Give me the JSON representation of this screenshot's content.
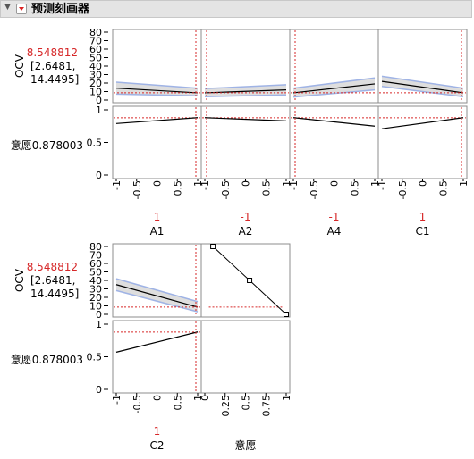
{
  "header": {
    "title": "预测刻画器"
  },
  "colors": {
    "red": "#d62728",
    "band": "#9fb3e5",
    "bandFill": "#dedede",
    "frame": "#8c8c8c"
  },
  "response": {
    "name": "OCV",
    "value": "8.548812",
    "ci_line1": "[2.6481,",
    "ci_line2": "14.4495]",
    "desirability_label": "意愿0.878003",
    "ocv_ticks": [
      "0",
      "10",
      "20",
      "30",
      "40",
      "50",
      "60",
      "70",
      "80"
    ],
    "des_ticks": [
      "0",
      "0.5",
      "1"
    ]
  },
  "x_ticks": [
    "-1",
    "-0.5",
    "0",
    "0.5",
    "1"
  ],
  "des_x_ticks": [
    "0",
    "0.25",
    "0.5",
    "0.75",
    "1"
  ],
  "factors": [
    {
      "name": "A1",
      "setting": "1",
      "ocv": [
        14,
        8.5
      ],
      "ci": [
        [
          7,
          21
        ],
        [
          5,
          14
        ]
      ],
      "des": [
        0.79,
        0.88
      ]
    },
    {
      "name": "A2",
      "setting": "-1",
      "ocv": [
        8.5,
        12
      ],
      "ci": [
        [
          4,
          13.5
        ],
        [
          6,
          18
        ]
      ],
      "des": [
        0.88,
        0.83
      ]
    },
    {
      "name": "A4",
      "setting": "-1",
      "ocv": [
        8.5,
        19
      ],
      "ci": [
        [
          3.5,
          14
        ],
        [
          12,
          26
        ]
      ],
      "des": [
        0.88,
        0.75
      ]
    },
    {
      "name": "C1",
      "setting": "1",
      "ocv": [
        22,
        8.5
      ],
      "ci": [
        [
          16,
          28
        ],
        [
          4,
          14
        ]
      ],
      "des": [
        0.71,
        0.88
      ]
    },
    {
      "name": "C2",
      "setting": "1",
      "ocv": [
        35,
        8.5
      ],
      "ci": [
        [
          28,
          42
        ],
        [
          3,
          15
        ]
      ],
      "des": [
        0.57,
        0.88
      ]
    }
  ],
  "desirability_function": {
    "name": "意愿",
    "points": [
      {
        "des": 0.1,
        "ocv": 80
      },
      {
        "des": 0.55,
        "ocv": 40
      },
      {
        "des": 1.0,
        "ocv": 0
      }
    ],
    "current_ocv": 8.548812
  }
}
